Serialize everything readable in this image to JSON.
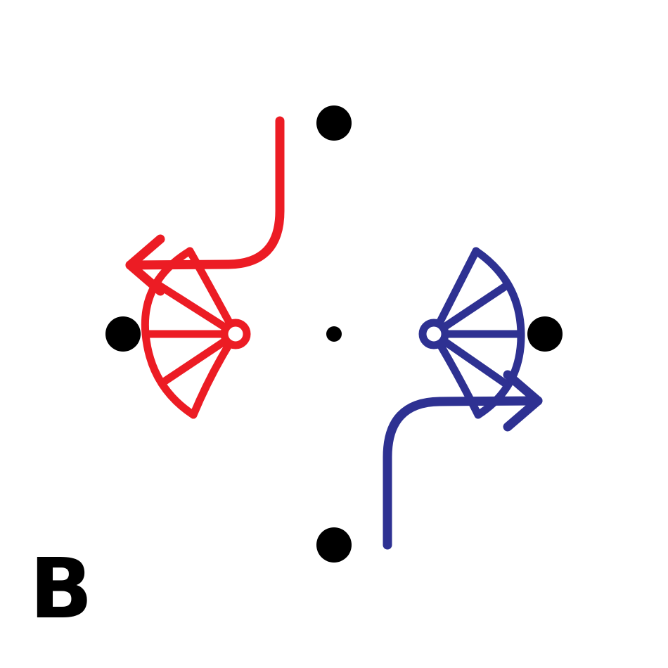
{
  "panel_label": "B",
  "colors": {
    "left_figure": "#ec1c24",
    "right_figure": "#2e3192",
    "dot": "#000000",
    "background": "#ffffff"
  },
  "elements": {
    "dots": [
      "top-dot",
      "left-dot",
      "center-dot",
      "right-dot",
      "bottom-dot"
    ],
    "figures": [
      "red-fan-figure",
      "blue-fan-figure"
    ],
    "paths": [
      "red-curved-arrow",
      "blue-curved-arrow"
    ]
  }
}
